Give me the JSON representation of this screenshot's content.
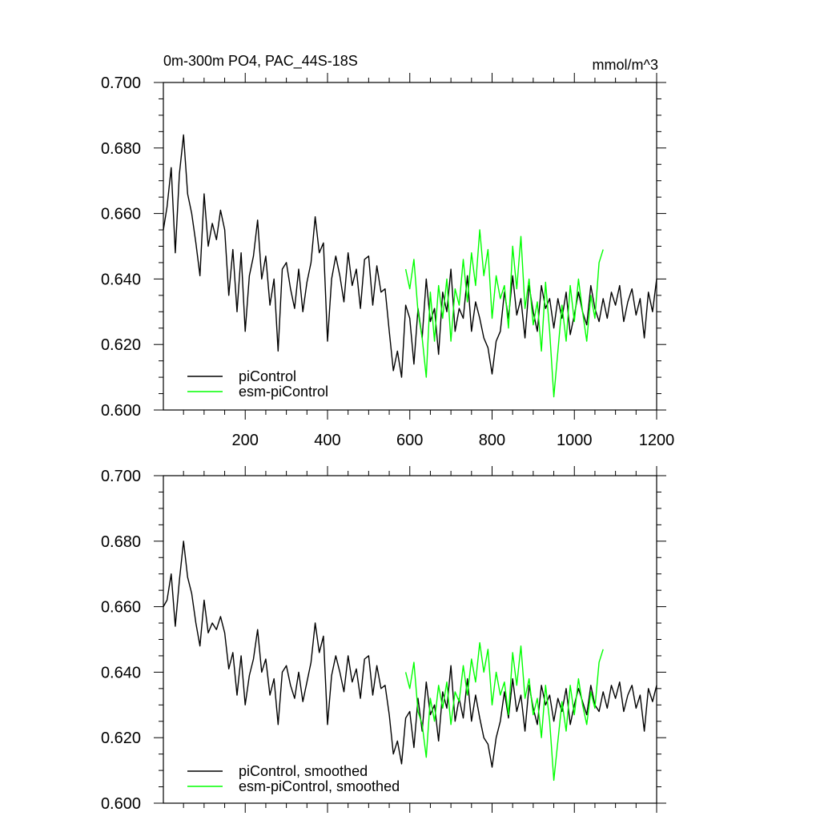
{
  "chart_data": [
    {
      "type": "line",
      "title": "0m-300m PO4, PAC_44S-18S",
      "units": "mmol/m^3",
      "xlim": [
        1,
        1200
      ],
      "ylim": [
        0.6,
        0.7
      ],
      "x_ticks": [
        200,
        400,
        600,
        800,
        1000,
        1200
      ],
      "y_ticks": [
        "0.600",
        "0.620",
        "0.640",
        "0.660",
        "0.680",
        "0.700"
      ],
      "legend_position": "bottom-left",
      "series": [
        {
          "name": "piControl",
          "color": "#000000",
          "x": [
            1,
            10,
            20,
            30,
            40,
            50,
            60,
            70,
            80,
            90,
            100,
            110,
            120,
            130,
            140,
            150,
            160,
            170,
            180,
            190,
            200,
            210,
            220,
            230,
            240,
            250,
            260,
            270,
            280,
            290,
            300,
            310,
            320,
            330,
            340,
            350,
            360,
            370,
            380,
            390,
            400,
            410,
            420,
            430,
            440,
            450,
            460,
            470,
            480,
            490,
            500,
            510,
            520,
            530,
            540,
            550,
            560,
            570,
            580,
            590,
            600,
            610,
            620,
            630,
            640,
            650,
            660,
            670,
            680,
            690,
            700,
            710,
            720,
            730,
            740,
            750,
            760,
            770,
            780,
            790,
            800,
            810,
            820,
            830,
            840,
            850,
            860,
            870,
            880,
            890,
            900,
            910,
            920,
            930,
            940,
            950,
            960,
            970,
            980,
            990,
            1000,
            1010,
            1020,
            1030,
            1040,
            1050,
            1060,
            1070,
            1080,
            1090,
            1100,
            1110,
            1120,
            1130,
            1140,
            1150,
            1160,
            1170,
            1180,
            1190,
            1200
          ],
          "values": [
            0.655,
            0.662,
            0.674,
            0.648,
            0.672,
            0.684,
            0.666,
            0.66,
            0.651,
            0.641,
            0.666,
            0.65,
            0.657,
            0.652,
            0.661,
            0.655,
            0.635,
            0.649,
            0.63,
            0.648,
            0.624,
            0.641,
            0.647,
            0.658,
            0.64,
            0.647,
            0.632,
            0.64,
            0.618,
            0.643,
            0.645,
            0.637,
            0.631,
            0.643,
            0.63,
            0.639,
            0.645,
            0.659,
            0.648,
            0.651,
            0.621,
            0.64,
            0.647,
            0.641,
            0.633,
            0.648,
            0.638,
            0.643,
            0.631,
            0.646,
            0.647,
            0.632,
            0.644,
            0.636,
            0.637,
            0.624,
            0.612,
            0.618,
            0.61,
            0.632,
            0.628,
            0.614,
            0.631,
            0.622,
            0.64,
            0.627,
            0.631,
            0.617,
            0.636,
            0.63,
            0.643,
            0.624,
            0.631,
            0.628,
            0.641,
            0.624,
            0.633,
            0.628,
            0.622,
            0.619,
            0.611,
            0.621,
            0.624,
            0.636,
            0.628,
            0.641,
            0.629,
            0.634,
            0.622,
            0.638,
            0.63,
            0.624,
            0.638,
            0.631,
            0.634,
            0.625,
            0.634,
            0.628,
            0.636,
            0.623,
            0.629,
            0.636,
            0.63,
            0.626,
            0.638,
            0.631,
            0.627,
            0.634,
            0.628,
            0.636,
            0.632,
            0.638,
            0.627,
            0.633,
            0.637,
            0.629,
            0.634,
            0.622,
            0.636,
            0.63,
            0.64
          ]
        },
        {
          "name": "esm-piControl",
          "color": "#00ff00",
          "x": [
            590,
            600,
            610,
            620,
            630,
            640,
            650,
            660,
            670,
            680,
            690,
            700,
            710,
            720,
            730,
            740,
            750,
            760,
            770,
            780,
            790,
            800,
            810,
            820,
            830,
            840,
            850,
            860,
            870,
            880,
            890,
            900,
            910,
            920,
            930,
            940,
            950,
            960,
            970,
            980,
            990,
            1000,
            1010,
            1020,
            1030,
            1040,
            1050,
            1060,
            1070
          ],
          "values": [
            0.643,
            0.637,
            0.646,
            0.63,
            0.622,
            0.61,
            0.636,
            0.621,
            0.638,
            0.628,
            0.64,
            0.621,
            0.637,
            0.632,
            0.646,
            0.633,
            0.648,
            0.638,
            0.655,
            0.641,
            0.649,
            0.628,
            0.641,
            0.634,
            0.638,
            0.625,
            0.65,
            0.637,
            0.653,
            0.631,
            0.64,
            0.626,
            0.633,
            0.618,
            0.639,
            0.624,
            0.604,
            0.618,
            0.632,
            0.621,
            0.638,
            0.627,
            0.64,
            0.63,
            0.621,
            0.635,
            0.628,
            0.645,
            0.649
          ]
        }
      ]
    },
    {
      "type": "line",
      "xlim": [
        1,
        1200
      ],
      "ylim": [
        0.6,
        0.7
      ],
      "y_ticks": [
        "0.600",
        "0.620",
        "0.640",
        "0.660",
        "0.680",
        "0.700"
      ],
      "legend_position": "bottom-left",
      "series": [
        {
          "name": "piControl, smoothed",
          "color": "#000000",
          "x": [
            1,
            10,
            20,
            30,
            40,
            50,
            60,
            70,
            80,
            90,
            100,
            110,
            120,
            130,
            140,
            150,
            160,
            170,
            180,
            190,
            200,
            210,
            220,
            230,
            240,
            250,
            260,
            270,
            280,
            290,
            300,
            310,
            320,
            330,
            340,
            350,
            360,
            370,
            380,
            390,
            400,
            410,
            420,
            430,
            440,
            450,
            460,
            470,
            480,
            490,
            500,
            510,
            520,
            530,
            540,
            550,
            560,
            570,
            580,
            590,
            600,
            610,
            620,
            630,
            640,
            650,
            660,
            670,
            680,
            690,
            700,
            710,
            720,
            730,
            740,
            750,
            760,
            770,
            780,
            790,
            800,
            810,
            820,
            830,
            840,
            850,
            860,
            870,
            880,
            890,
            900,
            910,
            920,
            930,
            940,
            950,
            960,
            970,
            980,
            990,
            1000,
            1010,
            1020,
            1030,
            1040,
            1050,
            1060,
            1070,
            1080,
            1090,
            1100,
            1110,
            1120,
            1130,
            1140,
            1150,
            1160,
            1170,
            1180,
            1190,
            1200
          ],
          "values": [
            0.66,
            0.662,
            0.67,
            0.654,
            0.668,
            0.68,
            0.669,
            0.664,
            0.655,
            0.648,
            0.662,
            0.652,
            0.655,
            0.653,
            0.657,
            0.652,
            0.641,
            0.646,
            0.633,
            0.645,
            0.63,
            0.639,
            0.644,
            0.653,
            0.64,
            0.644,
            0.633,
            0.638,
            0.624,
            0.64,
            0.642,
            0.636,
            0.632,
            0.64,
            0.631,
            0.637,
            0.643,
            0.655,
            0.646,
            0.651,
            0.624,
            0.639,
            0.645,
            0.64,
            0.634,
            0.645,
            0.637,
            0.641,
            0.632,
            0.644,
            0.645,
            0.633,
            0.642,
            0.635,
            0.636,
            0.627,
            0.615,
            0.619,
            0.612,
            0.626,
            0.628,
            0.617,
            0.632,
            0.622,
            0.637,
            0.627,
            0.63,
            0.619,
            0.634,
            0.629,
            0.642,
            0.625,
            0.632,
            0.626,
            0.638,
            0.625,
            0.633,
            0.626,
            0.62,
            0.618,
            0.611,
            0.62,
            0.625,
            0.634,
            0.626,
            0.638,
            0.628,
            0.633,
            0.622,
            0.636,
            0.629,
            0.624,
            0.636,
            0.63,
            0.633,
            0.625,
            0.632,
            0.628,
            0.635,
            0.624,
            0.63,
            0.635,
            0.631,
            0.627,
            0.636,
            0.63,
            0.628,
            0.634,
            0.629,
            0.636,
            0.632,
            0.637,
            0.628,
            0.633,
            0.636,
            0.629,
            0.633,
            0.622,
            0.635,
            0.631,
            0.636
          ]
        },
        {
          "name": "esm-piControl, smoothed",
          "color": "#00ff00",
          "x": [
            590,
            600,
            610,
            620,
            630,
            640,
            650,
            660,
            670,
            680,
            690,
            700,
            710,
            720,
            730,
            740,
            750,
            760,
            770,
            780,
            790,
            800,
            810,
            820,
            830,
            840,
            850,
            860,
            870,
            880,
            890,
            900,
            910,
            920,
            930,
            940,
            950,
            960,
            970,
            980,
            990,
            1000,
            1010,
            1020,
            1030,
            1040,
            1050,
            1060,
            1070
          ],
          "values": [
            0.64,
            0.635,
            0.643,
            0.628,
            0.624,
            0.614,
            0.632,
            0.625,
            0.636,
            0.629,
            0.637,
            0.624,
            0.634,
            0.631,
            0.642,
            0.633,
            0.644,
            0.637,
            0.649,
            0.64,
            0.647,
            0.63,
            0.64,
            0.633,
            0.637,
            0.627,
            0.646,
            0.636,
            0.648,
            0.632,
            0.638,
            0.627,
            0.632,
            0.62,
            0.636,
            0.625,
            0.607,
            0.619,
            0.631,
            0.622,
            0.636,
            0.627,
            0.638,
            0.63,
            0.624,
            0.634,
            0.629,
            0.643,
            0.647
          ]
        }
      ]
    }
  ]
}
